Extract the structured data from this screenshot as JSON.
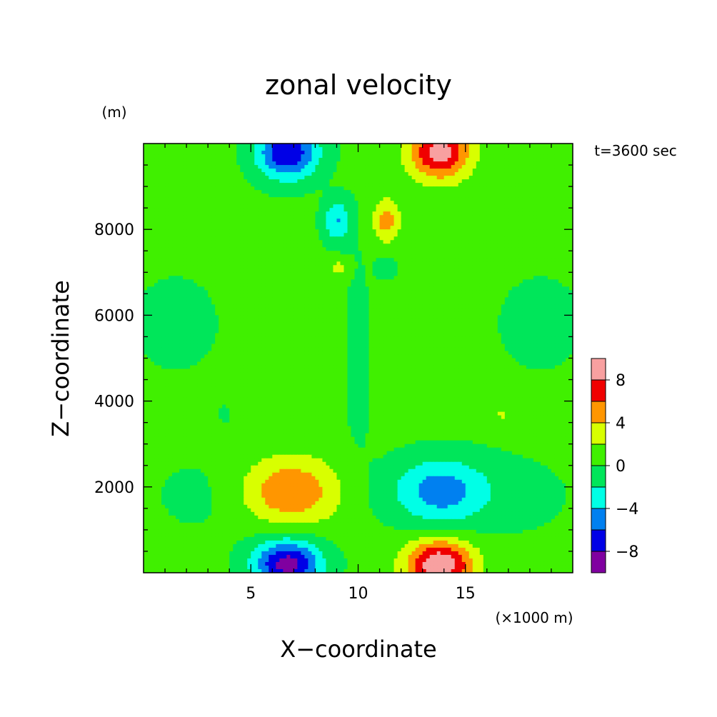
{
  "chart_data": {
    "type": "heatmap",
    "title": "zonal velocity",
    "xlabel": "X−coordinate",
    "ylabel": "Z−coordinate",
    "x_unit": "(×1000 m)",
    "y_unit": "(m)",
    "time_label": "t=3600 sec",
    "xlim": [
      0,
      20
    ],
    "ylim": [
      0,
      10000
    ],
    "x_ticks": [
      5,
      10,
      15
    ],
    "x_tick_labels": [
      "5",
      "10",
      "15"
    ],
    "y_ticks": [
      2000,
      4000,
      6000,
      8000
    ],
    "y_tick_labels": [
      "2000",
      "4000",
      "6000",
      "8000"
    ],
    "colorbar": {
      "levels": [
        -10,
        -8,
        -6,
        -4,
        -2,
        0,
        2,
        4,
        6,
        8,
        10
      ],
      "colors": [
        "#8000a0",
        "#0000e6",
        "#0080f0",
        "#00ffe6",
        "#00e65a",
        "#40f000",
        "#d8ff00",
        "#ff9600",
        "#f00000",
        "#f8a0a0"
      ],
      "tick_values": [
        -8,
        -4,
        0,
        4,
        8
      ],
      "tick_labels": [
        "−8",
        "−4",
        "0",
        "4",
        "8"
      ]
    },
    "background_level": 0.5,
    "features": [
      {
        "x": 6.7,
        "z": 9800,
        "peak": -8.5,
        "sx": 1.0,
        "sz": 450
      },
      {
        "x": 13.8,
        "z": 9800,
        "peak": 8.5,
        "sx": 1.0,
        "sz": 450
      },
      {
        "x": 6.7,
        "z": 200,
        "peak": -9.5,
        "sx": 1.1,
        "sz": 400
      },
      {
        "x": 13.8,
        "z": 200,
        "peak": 9.5,
        "sx": 1.1,
        "sz": 400
      },
      {
        "x": 6.8,
        "z": 1900,
        "peak": 5.5,
        "sx": 1.6,
        "sz": 550
      },
      {
        "x": 13.8,
        "z": 1900,
        "peak": -5.5,
        "sx": 1.6,
        "sz": 550
      },
      {
        "x": 9.0,
        "z": 8200,
        "peak": -4.5,
        "sx": 0.45,
        "sz": 350
      },
      {
        "x": 11.3,
        "z": 8200,
        "peak": 4.5,
        "sx": 0.45,
        "sz": 350
      },
      {
        "x": 9.1,
        "z": 7100,
        "peak": 2.5,
        "sx": 0.3,
        "sz": 150
      },
      {
        "x": 11.3,
        "z": 7100,
        "peak": -2.5,
        "sx": 0.3,
        "sz": 150
      },
      {
        "x": 3.8,
        "z": 3700,
        "peak": -2.3,
        "sx": 0.15,
        "sz": 100
      },
      {
        "x": 16.7,
        "z": 3700,
        "peak": 2.3,
        "sx": 0.15,
        "sz": 100
      },
      {
        "x": 1.5,
        "z": 5800,
        "peak": -0.9,
        "sx": 1.8,
        "sz": 1000
      },
      {
        "x": 18.5,
        "z": 5800,
        "peak": -0.9,
        "sx": 1.8,
        "sz": 1000
      },
      {
        "x": 3.0,
        "z": 1800,
        "peak": -0.9,
        "sx": 2.0,
        "sz": 700
      },
      {
        "x": 17.5,
        "z": 1800,
        "peak": -0.9,
        "sx": 2.0,
        "sz": 700
      },
      {
        "x": 10.0,
        "z": 5000,
        "peak": -0.8,
        "sx": 0.6,
        "sz": 2500
      }
    ]
  }
}
